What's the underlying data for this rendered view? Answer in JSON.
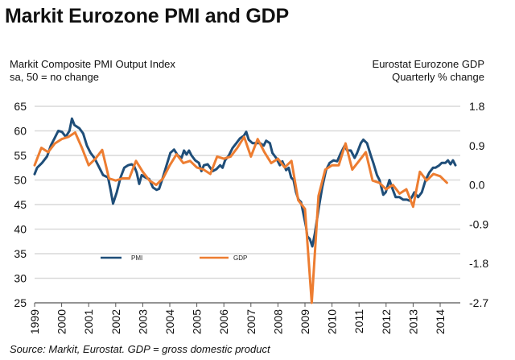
{
  "title": "Markit Eurozone PMI and GDP",
  "left_axis_label": [
    "Markit Composite PMI Output Index",
    "sa, 50 = no change"
  ],
  "right_axis_label": [
    "Eurostat Eurozone GDP",
    "Quarterly % change"
  ],
  "source": "Source: Markit, Eurostat. GDP = gross domestic product",
  "colors": {
    "pmi": "#1f4e79",
    "gdp": "#ed7d31",
    "grid": "#d9d9d9",
    "axis": "#555555"
  },
  "chart_data": {
    "type": "line",
    "title": "Markit Eurozone PMI and GDP",
    "x_ticks": [
      "1999",
      "2000",
      "2001",
      "2002",
      "2003",
      "2004",
      "2005",
      "2006",
      "2007",
      "2008",
      "2009",
      "2010",
      "2011",
      "2012",
      "2013",
      "2014"
    ],
    "xlim": [
      1999.0,
      2014.85
    ],
    "y_left": {
      "label": "Markit Composite PMI Output Index (sa, 50 = no change)",
      "ticks": [
        25,
        30,
        35,
        40,
        45,
        50,
        55,
        60,
        65
      ],
      "ylim": [
        25,
        65
      ]
    },
    "y_right": {
      "label": "Eurostat Eurozone GDP, Quarterly % change",
      "ticks": [
        "1.8",
        "0.9",
        "0.0",
        "-0.9",
        "-1.8",
        "-2.7"
      ],
      "ylim": [
        -2.7,
        1.8
      ]
    },
    "grid": true,
    "legend": {
      "position": "lower-left-inside",
      "entries": [
        "PMI",
        "GDP"
      ]
    },
    "series": [
      {
        "name": "PMI",
        "axis": "left",
        "points": [
          [
            1999.0,
            51.2
          ],
          [
            1999.1,
            52.5
          ],
          [
            1999.3,
            53.5
          ],
          [
            1999.5,
            54.8
          ],
          [
            1999.65,
            57.0
          ],
          [
            1999.8,
            58.5
          ],
          [
            1999.95,
            60.0
          ],
          [
            2000.1,
            59.8
          ],
          [
            2000.25,
            58.8
          ],
          [
            2000.4,
            60.0
          ],
          [
            2000.5,
            62.5
          ],
          [
            2000.6,
            61.2
          ],
          [
            2000.8,
            60.5
          ],
          [
            2000.95,
            59.5
          ],
          [
            2001.1,
            57.0
          ],
          [
            2001.25,
            55.5
          ],
          [
            2001.4,
            54.5
          ],
          [
            2001.6,
            52.5
          ],
          [
            2001.75,
            51.0
          ],
          [
            2001.95,
            50.5
          ],
          [
            2002.05,
            48.0
          ],
          [
            2002.15,
            45.2
          ],
          [
            2002.3,
            47.5
          ],
          [
            2002.45,
            50.5
          ],
          [
            2002.6,
            52.5
          ],
          [
            2002.75,
            53.0
          ],
          [
            2002.9,
            53.2
          ],
          [
            2003.0,
            52.8
          ],
          [
            2003.1,
            51.5
          ],
          [
            2003.2,
            49.2
          ],
          [
            2003.3,
            51.0
          ],
          [
            2003.45,
            50.5
          ],
          [
            2003.6,
            50.2
          ],
          [
            2003.75,
            48.5
          ],
          [
            2003.9,
            48.0
          ],
          [
            2004.0,
            48.2
          ],
          [
            2004.15,
            50.5
          ],
          [
            2004.3,
            53.0
          ],
          [
            2004.45,
            55.5
          ],
          [
            2004.6,
            56.2
          ],
          [
            2004.75,
            55.0
          ],
          [
            2004.9,
            54.5
          ],
          [
            2005.0,
            56.0
          ],
          [
            2005.1,
            55.2
          ],
          [
            2005.2,
            56.0
          ],
          [
            2005.3,
            55.0
          ],
          [
            2005.45,
            54.0
          ],
          [
            2005.6,
            53.5
          ],
          [
            2005.7,
            51.8
          ],
          [
            2005.8,
            53.0
          ],
          [
            2005.95,
            53.2
          ],
          [
            2006.05,
            52.5
          ],
          [
            2006.15,
            51.8
          ],
          [
            2006.3,
            52.2
          ],
          [
            2006.45,
            53.0
          ],
          [
            2006.55,
            52.5
          ],
          [
            2006.65,
            54.0
          ],
          [
            2006.8,
            55.0
          ],
          [
            2006.95,
            56.5
          ],
          [
            2007.1,
            57.5
          ],
          [
            2007.25,
            58.5
          ],
          [
            2007.4,
            59.0
          ],
          [
            2007.5,
            59.8
          ],
          [
            2007.6,
            58.2
          ],
          [
            2007.75,
            57.5
          ],
          [
            2007.9,
            57.5
          ],
          [
            2008.05,
            57.5
          ],
          [
            2008.2,
            57.0
          ],
          [
            2008.3,
            58.0
          ],
          [
            2008.45,
            57.5
          ],
          [
            2008.55,
            55.5
          ],
          [
            2008.7,
            54.5
          ],
          [
            2008.85,
            53.0
          ],
          [
            2008.95,
            53.8
          ],
          [
            2009.1,
            52.0
          ],
          [
            2009.2,
            52.5
          ],
          [
            2009.3,
            50.5
          ],
          [
            2009.4,
            50.0
          ],
          [
            2009.5,
            47.5
          ],
          [
            2009.6,
            46.0
          ],
          [
            2009.7,
            45.5
          ],
          [
            2009.8,
            43.0
          ],
          [
            2009.9,
            40.5
          ],
          [
            2009.95,
            38.5
          ],
          [
            2010.05,
            38.0
          ],
          [
            2010.15,
            36.5
          ],
          [
            2010.25,
            39.0
          ],
          [
            2010.4,
            44.0
          ],
          [
            2010.55,
            48.5
          ],
          [
            2010.7,
            52.0
          ],
          [
            2010.85,
            53.5
          ],
          [
            2011.0,
            54.0
          ],
          [
            2011.15,
            53.8
          ],
          [
            2011.3,
            55.5
          ],
          [
            2011.45,
            57.0
          ],
          [
            2011.55,
            56.0
          ],
          [
            2011.7,
            56.0
          ],
          [
            2011.85,
            54.5
          ],
          [
            2011.95,
            55.5
          ],
          [
            2012.1,
            57.5
          ],
          [
            2012.2,
            58.2
          ],
          [
            2012.35,
            57.5
          ],
          [
            2012.5,
            55.0
          ],
          [
            2012.6,
            53.5
          ],
          [
            2012.75,
            51.0
          ],
          [
            2012.85,
            50.0
          ],
          [
            2013.0,
            47.0
          ],
          [
            2013.1,
            47.5
          ],
          [
            2013.25,
            50.0
          ],
          [
            2013.35,
            48.5
          ],
          [
            2013.5,
            46.5
          ],
          [
            2013.65,
            46.5
          ],
          [
            2013.8,
            46.0
          ],
          [
            2013.95,
            46.0
          ],
          [
            2014.05,
            45.8
          ],
          [
            2014.15,
            46.5
          ],
          [
            2014.25,
            47.5
          ],
          [
            2014.4,
            46.5
          ],
          [
            2014.55,
            47.5
          ],
          [
            2014.7,
            50.0
          ],
          [
            2014.85,
            51.5
          ],
          [
            2015.0,
            52.5
          ],
          [
            2015.1,
            52.5
          ],
          [
            2015.25,
            53.0
          ],
          [
            2015.35,
            53.5
          ],
          [
            2015.5,
            53.5
          ],
          [
            2015.6,
            54.0
          ],
          [
            2015.7,
            53.2
          ],
          [
            2015.8,
            54.0
          ],
          [
            2015.9,
            53.0
          ]
        ]
      },
      {
        "name": "GDP",
        "axis": "right",
        "points": [
          [
            1999.0,
            0.45
          ],
          [
            1999.25,
            0.85
          ],
          [
            1999.5,
            0.75
          ],
          [
            1999.75,
            0.95
          ],
          [
            2000.0,
            1.05
          ],
          [
            2000.25,
            1.1
          ],
          [
            2000.5,
            1.2
          ],
          [
            2000.75,
            0.85
          ],
          [
            2001.0,
            0.45
          ],
          [
            2001.25,
            0.6
          ],
          [
            2001.5,
            0.8
          ],
          [
            2001.75,
            0.15
          ],
          [
            2002.0,
            0.1
          ],
          [
            2002.25,
            0.15
          ],
          [
            2002.5,
            0.15
          ],
          [
            2002.75,
            0.55
          ],
          [
            2003.0,
            0.3
          ],
          [
            2003.25,
            0.1
          ],
          [
            2003.5,
            0.0
          ],
          [
            2003.75,
            0.15
          ],
          [
            2004.0,
            0.45
          ],
          [
            2004.25,
            0.7
          ],
          [
            2004.5,
            0.5
          ],
          [
            2004.75,
            0.55
          ],
          [
            2005.0,
            0.4
          ],
          [
            2005.25,
            0.35
          ],
          [
            2005.5,
            0.25
          ],
          [
            2005.75,
            0.65
          ],
          [
            2006.0,
            0.6
          ],
          [
            2006.25,
            0.65
          ],
          [
            2006.5,
            0.85
          ],
          [
            2006.75,
            1.1
          ],
          [
            2007.0,
            0.65
          ],
          [
            2007.25,
            1.05
          ],
          [
            2007.5,
            0.75
          ],
          [
            2007.75,
            0.5
          ],
          [
            2008.0,
            0.6
          ],
          [
            2008.25,
            0.4
          ],
          [
            2008.5,
            0.55
          ],
          [
            2008.75,
            -0.35
          ],
          [
            2009.0,
            -0.55
          ],
          [
            2009.25,
            -2.7
          ],
          [
            2009.5,
            -0.25
          ],
          [
            2009.75,
            0.35
          ],
          [
            2010.0,
            0.45
          ],
          [
            2010.25,
            0.45
          ],
          [
            2010.5,
            0.95
          ],
          [
            2010.75,
            0.35
          ],
          [
            2011.0,
            0.55
          ],
          [
            2011.25,
            0.75
          ],
          [
            2011.5,
            0.1
          ],
          [
            2011.75,
            0.05
          ],
          [
            2012.0,
            -0.1
          ],
          [
            2012.25,
            0.0
          ],
          [
            2012.5,
            -0.2
          ],
          [
            2012.75,
            -0.1
          ],
          [
            2013.0,
            -0.5
          ],
          [
            2013.25,
            0.3
          ],
          [
            2013.5,
            0.1
          ],
          [
            2013.75,
            0.25
          ],
          [
            2014.0,
            0.2
          ],
          [
            2014.25,
            0.05
          ]
        ]
      }
    ]
  }
}
